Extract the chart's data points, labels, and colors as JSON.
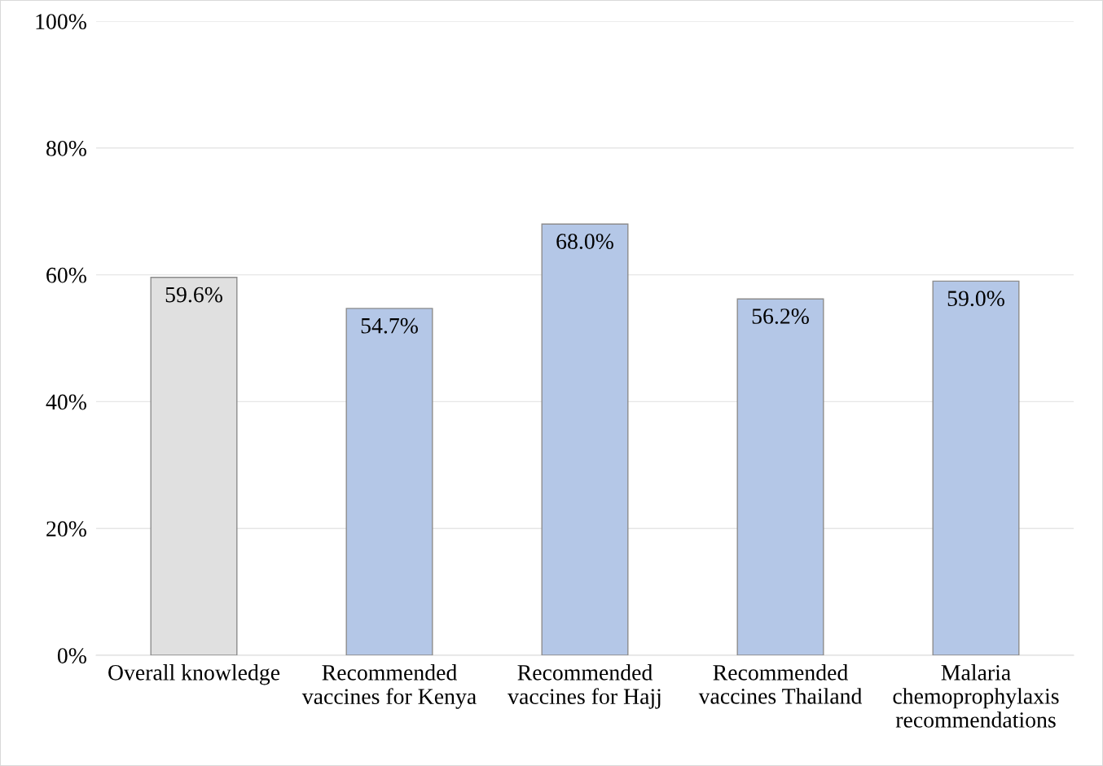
{
  "chart_data": {
    "type": "bar",
    "categories": [
      "Overall knowledge",
      "Recommended\nvaccines for Kenya",
      "Recommended\nvaccines for Hajj",
      "Recommended\nvaccines Thailand",
      "Malaria\nchemoprophylaxis\nrecommendations"
    ],
    "values": [
      59.6,
      54.7,
      68.0,
      56.2,
      59.0
    ],
    "colors": [
      "#e0e0e0",
      "#b4c7e7",
      "#b4c7e7",
      "#b4c7e7",
      "#b4c7e7"
    ],
    "value_labels": [
      "59.6%",
      "54.7%",
      "68.0%",
      "56.2%",
      "59.0%"
    ],
    "ylim": [
      0,
      100
    ],
    "yticks": [
      {
        "value": 0,
        "label": "0%"
      },
      {
        "value": 20,
        "label": "20%"
      },
      {
        "value": 40,
        "label": "40%"
      },
      {
        "value": 60,
        "label": "60%"
      },
      {
        "value": 80,
        "label": "80%"
      },
      {
        "value": 100,
        "label": "100%"
      }
    ],
    "grid": "y",
    "legend": false
  }
}
